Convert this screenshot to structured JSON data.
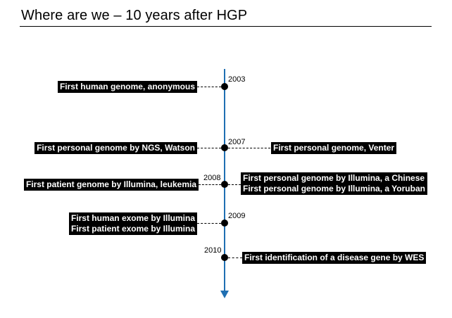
{
  "title": "Where are we – 10 years after HGP",
  "colors": {
    "axis": "#1f6fb2",
    "label_bg": "#000000",
    "label_text": "#ffffff"
  },
  "timeline": {
    "y2003": {
      "year": "2003",
      "left": [
        "First human genome, anonymous"
      ]
    },
    "y2007": {
      "year": "2007",
      "left": [
        "First personal genome by NGS, Watson"
      ],
      "right": [
        "First personal genome, Venter"
      ]
    },
    "y2008": {
      "year": "2008",
      "left": [
        "First patient genome by Illumina, leukemia"
      ],
      "right": [
        "First personal genome by Illumina, a Chinese",
        "First personal genome by Illumina, a Yoruban"
      ]
    },
    "y2009": {
      "year": "2009",
      "left": [
        "First human exome by Illumina",
        "First patient exome by Illumina"
      ]
    },
    "y2010": {
      "year": "2010",
      "right": [
        "First identification of a disease gene by WES"
      ]
    }
  }
}
